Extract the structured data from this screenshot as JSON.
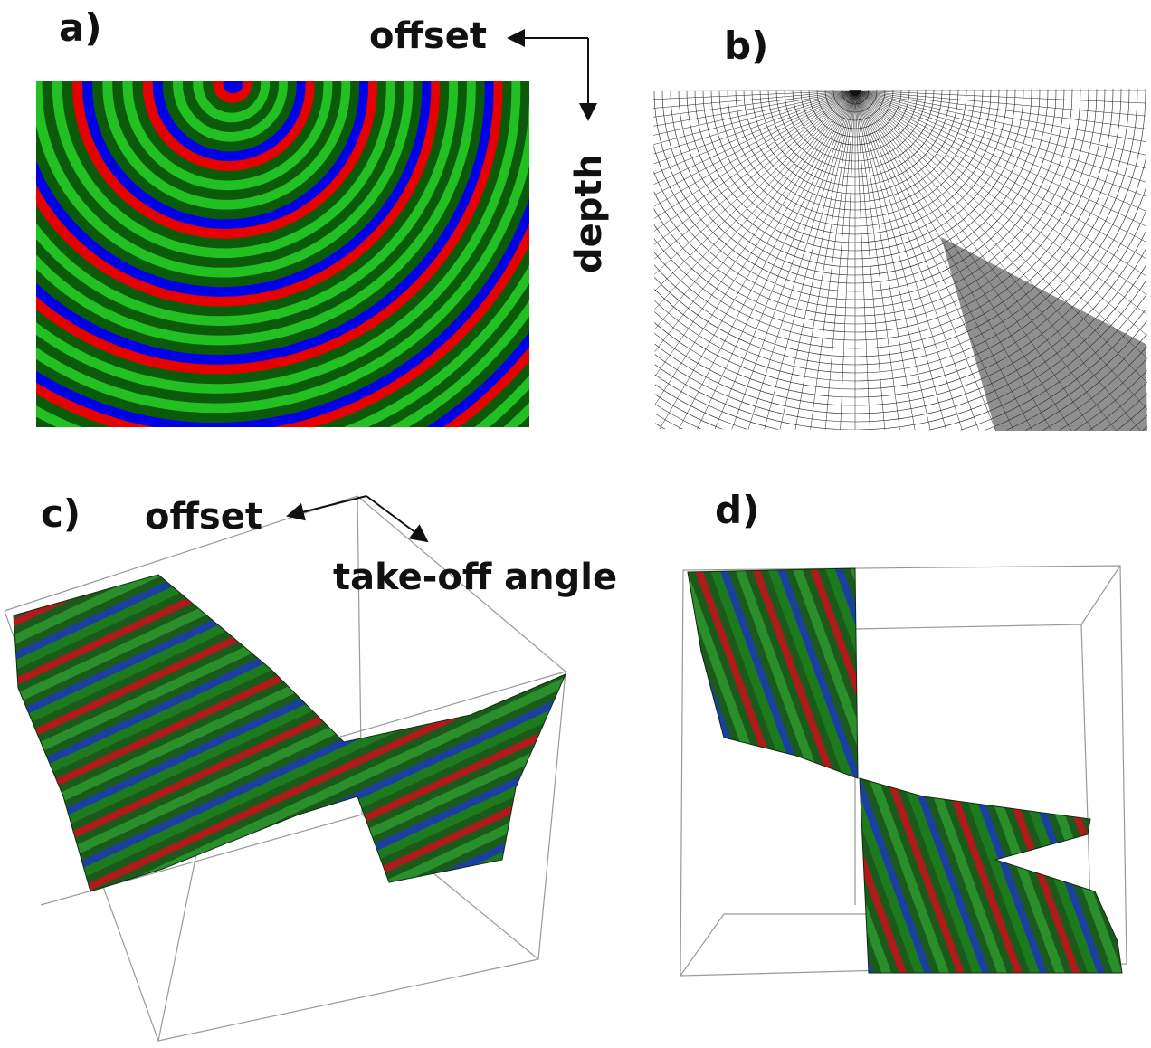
{
  "panels": [
    {
      "label": "a)",
      "axis_labels": [
        "offset",
        "depth"
      ]
    },
    {
      "label": "b)"
    },
    {
      "label": "c)",
      "axis_labels": [
        "offset",
        "take-off angle"
      ]
    },
    {
      "label": "d)"
    }
  ]
}
